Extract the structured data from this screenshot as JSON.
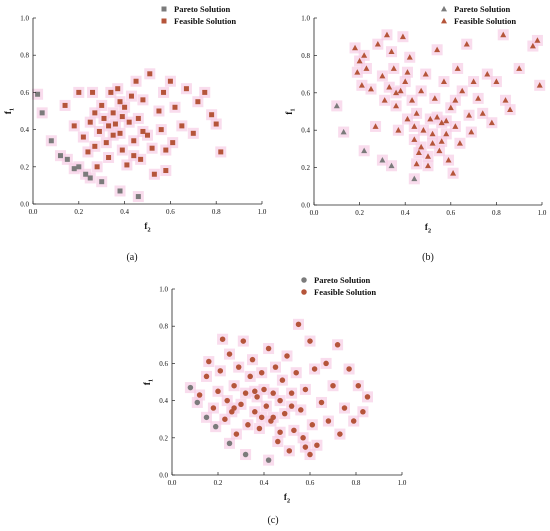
{
  "colors": {
    "pareto": "#7b7b7b",
    "feasible": "#b5553a",
    "halo": "#f7cde6",
    "axis": "#222222"
  },
  "chart_data": [
    {
      "type": "scatter",
      "panel_label": "(a)",
      "marker": "square",
      "xlabel": "f",
      "xlabel_sub": "2",
      "ylabel": "f",
      "ylabel_sub": "1",
      "xlim": [
        0,
        1.0
      ],
      "ylim": [
        0,
        1.0
      ],
      "xticks": [
        "0.0",
        "0.2",
        "0.4",
        "0.6",
        "0.8",
        "1.0"
      ],
      "yticks": [
        "0.0",
        "0.2",
        "0.4",
        "0.6",
        "0.8",
        "1.0"
      ],
      "grid": false,
      "legend_position": "top-right",
      "series": [
        {
          "name": "Pareto Solution",
          "points": [
            [
              0.02,
              0.59
            ],
            [
              0.04,
              0.49
            ],
            [
              0.08,
              0.34
            ],
            [
              0.12,
              0.26
            ],
            [
              0.15,
              0.24
            ],
            [
              0.18,
              0.19
            ],
            [
              0.2,
              0.2
            ],
            [
              0.23,
              0.16
            ],
            [
              0.25,
              0.14
            ],
            [
              0.3,
              0.12
            ],
            [
              0.38,
              0.07
            ],
            [
              0.46,
              0.04
            ]
          ]
        },
        {
          "name": "Feasible Solution",
          "points": [
            [
              0.14,
              0.53
            ],
            [
              0.18,
              0.42
            ],
            [
              0.2,
              0.6
            ],
            [
              0.22,
              0.36
            ],
            [
              0.24,
              0.28
            ],
            [
              0.25,
              0.44
            ],
            [
              0.26,
              0.6
            ],
            [
              0.27,
              0.49
            ],
            [
              0.28,
              0.2
            ],
            [
              0.29,
              0.39
            ],
            [
              0.3,
              0.53
            ],
            [
              0.31,
              0.46
            ],
            [
              0.32,
              0.33
            ],
            [
              0.33,
              0.25
            ],
            [
              0.34,
              0.6
            ],
            [
              0.35,
              0.49
            ],
            [
              0.36,
              0.43
            ],
            [
              0.37,
              0.62
            ],
            [
              0.38,
              0.38
            ],
            [
              0.39,
              0.29
            ],
            [
              0.4,
              0.52
            ],
            [
              0.41,
              0.21
            ],
            [
              0.42,
              0.44
            ],
            [
              0.43,
              0.58
            ],
            [
              0.44,
              0.34
            ],
            [
              0.45,
              0.66
            ],
            [
              0.46,
              0.46
            ],
            [
              0.47,
              0.24
            ],
            [
              0.48,
              0.56
            ],
            [
              0.5,
              0.37
            ],
            [
              0.51,
              0.7
            ],
            [
              0.52,
              0.3
            ],
            [
              0.53,
              0.16
            ],
            [
              0.55,
              0.5
            ],
            [
              0.56,
              0.4
            ],
            [
              0.57,
              0.6
            ],
            [
              0.58,
              0.18
            ],
            [
              0.6,
              0.66
            ],
            [
              0.61,
              0.33
            ],
            [
              0.62,
              0.52
            ],
            [
              0.65,
              0.42
            ],
            [
              0.67,
              0.62
            ],
            [
              0.7,
              0.38
            ],
            [
              0.72,
              0.55
            ],
            [
              0.75,
              0.6
            ],
            [
              0.78,
              0.48
            ],
            [
              0.8,
              0.43
            ],
            [
              0.82,
              0.28
            ],
            [
              0.35,
              0.37
            ],
            [
              0.38,
              0.55
            ],
            [
              0.33,
              0.42
            ],
            [
              0.27,
              0.31
            ],
            [
              0.39,
              0.47
            ],
            [
              0.44,
              0.26
            ],
            [
              0.48,
              0.39
            ],
            [
              0.58,
              0.29
            ]
          ]
        }
      ]
    },
    {
      "type": "scatter",
      "panel_label": "(b)",
      "marker": "triangle",
      "xlabel": "f",
      "xlabel_sub": "2",
      "ylabel": "f",
      "ylabel_sub": "1",
      "xlim": [
        0,
        1.0
      ],
      "ylim": [
        0,
        1.0
      ],
      "xticks": [
        "0.0",
        "0.2",
        "0.4",
        "0.6",
        "0.8",
        "1.0"
      ],
      "yticks": [
        "0.0",
        "0.2",
        "0.4",
        "0.6",
        "0.8",
        "1.0"
      ],
      "grid": false,
      "legend_position": "top-right",
      "series": [
        {
          "name": "Pareto Solution",
          "points": [
            [
              0.1,
              0.53
            ],
            [
              0.13,
              0.39
            ],
            [
              0.22,
              0.29
            ],
            [
              0.3,
              0.24
            ],
            [
              0.34,
              0.21
            ],
            [
              0.44,
              0.14
            ]
          ]
        },
        {
          "name": "Feasible Solution",
          "points": [
            [
              0.18,
              0.84
            ],
            [
              0.19,
              0.71
            ],
            [
              0.2,
              0.77
            ],
            [
              0.21,
              0.64
            ],
            [
              0.22,
              0.8
            ],
            [
              0.23,
              0.73
            ],
            [
              0.25,
              0.62
            ],
            [
              0.27,
              0.42
            ],
            [
              0.28,
              0.86
            ],
            [
              0.3,
              0.69
            ],
            [
              0.31,
              0.56
            ],
            [
              0.32,
              0.91
            ],
            [
              0.33,
              0.63
            ],
            [
              0.34,
              0.82
            ],
            [
              0.35,
              0.73
            ],
            [
              0.36,
              0.53
            ],
            [
              0.37,
              0.4
            ],
            [
              0.38,
              0.61
            ],
            [
              0.39,
              0.9
            ],
            [
              0.4,
              0.66
            ],
            [
              0.41,
              0.46
            ],
            [
              0.42,
              0.79
            ],
            [
              0.43,
              0.56
            ],
            [
              0.44,
              0.35
            ],
            [
              0.45,
              0.49
            ],
            [
              0.46,
              0.28
            ],
            [
              0.47,
              0.61
            ],
            [
              0.48,
              0.4
            ],
            [
              0.49,
              0.7
            ],
            [
              0.5,
              0.21
            ],
            [
              0.51,
              0.46
            ],
            [
              0.52,
              0.33
            ],
            [
              0.53,
              0.57
            ],
            [
              0.54,
              0.83
            ],
            [
              0.55,
              0.29
            ],
            [
              0.56,
              0.44
            ],
            [
              0.57,
              0.66
            ],
            [
              0.58,
              0.38
            ],
            [
              0.59,
              0.24
            ],
            [
              0.6,
              0.52
            ],
            [
              0.61,
              0.17
            ],
            [
              0.62,
              0.42
            ],
            [
              0.63,
              0.73
            ],
            [
              0.64,
              0.33
            ],
            [
              0.65,
              0.61
            ],
            [
              0.67,
              0.86
            ],
            [
              0.68,
              0.48
            ],
            [
              0.7,
              0.66
            ],
            [
              0.72,
              0.57
            ],
            [
              0.74,
              0.49
            ],
            [
              0.76,
              0.7
            ],
            [
              0.78,
              0.44
            ],
            [
              0.8,
              0.66
            ],
            [
              0.83,
              0.91
            ],
            [
              0.84,
              0.56
            ],
            [
              0.86,
              0.51
            ],
            [
              0.9,
              0.73
            ],
            [
              0.96,
              0.85
            ],
            [
              0.98,
              0.88
            ],
            [
              0.99,
              0.64
            ],
            [
              0.52,
              0.38
            ],
            [
              0.47,
              0.31
            ],
            [
              0.44,
              0.42
            ],
            [
              0.56,
              0.34
            ],
            [
              0.5,
              0.26
            ],
            [
              0.58,
              0.45
            ],
            [
              0.36,
              0.6
            ],
            [
              0.62,
              0.56
            ],
            [
              0.54,
              0.47
            ],
            [
              0.45,
              0.22
            ],
            [
              0.69,
              0.39
            ],
            [
              0.41,
              0.71
            ]
          ]
        }
      ]
    },
    {
      "type": "scatter",
      "panel_label": "(c)",
      "marker": "circle",
      "xlabel": "f",
      "xlabel_sub": "2",
      "ylabel": "f",
      "ylabel_sub": "1",
      "xlim": [
        0,
        1.0
      ],
      "ylim": [
        0,
        1.0
      ],
      "xticks": [
        "0.0",
        "0.2",
        "0.4",
        "0.6",
        "0.8",
        "1.0"
      ],
      "yticks": [
        "0.0",
        "0.2",
        "0.4",
        "0.6",
        "0.8",
        "1.0"
      ],
      "grid": false,
      "legend_position": "top-right",
      "series": [
        {
          "name": "Pareto Solution",
          "points": [
            [
              0.08,
              0.47
            ],
            [
              0.11,
              0.39
            ],
            [
              0.15,
              0.31
            ],
            [
              0.19,
              0.26
            ],
            [
              0.25,
              0.17
            ],
            [
              0.32,
              0.11
            ],
            [
              0.42,
              0.08
            ]
          ]
        },
        {
          "name": "Feasible Solution",
          "points": [
            [
              0.12,
              0.43
            ],
            [
              0.15,
              0.53
            ],
            [
              0.16,
              0.61
            ],
            [
              0.18,
              0.36
            ],
            [
              0.2,
              0.45
            ],
            [
              0.21,
              0.56
            ],
            [
              0.22,
              0.73
            ],
            [
              0.23,
              0.3
            ],
            [
              0.24,
              0.4
            ],
            [
              0.25,
              0.65
            ],
            [
              0.26,
              0.34
            ],
            [
              0.27,
              0.48
            ],
            [
              0.28,
              0.22
            ],
            [
              0.29,
              0.58
            ],
            [
              0.3,
              0.38
            ],
            [
              0.31,
              0.72
            ],
            [
              0.32,
              0.44
            ],
            [
              0.33,
              0.27
            ],
            [
              0.34,
              0.53
            ],
            [
              0.35,
              0.62
            ],
            [
              0.36,
              0.34
            ],
            [
              0.37,
              0.42
            ],
            [
              0.38,
              0.25
            ],
            [
              0.39,
              0.55
            ],
            [
              0.4,
              0.46
            ],
            [
              0.41,
              0.37
            ],
            [
              0.42,
              0.68
            ],
            [
              0.43,
              0.29
            ],
            [
              0.44,
              0.44
            ],
            [
              0.45,
              0.58
            ],
            [
              0.46,
              0.18
            ],
            [
              0.47,
              0.4
            ],
            [
              0.48,
              0.51
            ],
            [
              0.49,
              0.33
            ],
            [
              0.5,
              0.64
            ],
            [
              0.51,
              0.13
            ],
            [
              0.52,
              0.44
            ],
            [
              0.53,
              0.24
            ],
            [
              0.54,
              0.55
            ],
            [
              0.55,
              0.81
            ],
            [
              0.56,
              0.35
            ],
            [
              0.57,
              0.2
            ],
            [
              0.58,
              0.46
            ],
            [
              0.6,
              0.72
            ],
            [
              0.61,
              0.27
            ],
            [
              0.62,
              0.57
            ],
            [
              0.63,
              0.16
            ],
            [
              0.65,
              0.39
            ],
            [
              0.67,
              0.6
            ],
            [
              0.68,
              0.29
            ],
            [
              0.7,
              0.48
            ],
            [
              0.72,
              0.7
            ],
            [
              0.73,
              0.22
            ],
            [
              0.75,
              0.36
            ],
            [
              0.77,
              0.57
            ],
            [
              0.79,
              0.29
            ],
            [
              0.81,
              0.48
            ],
            [
              0.83,
              0.34
            ],
            [
              0.85,
              0.42
            ],
            [
              0.6,
              0.11
            ],
            [
              0.44,
              0.31
            ],
            [
              0.36,
              0.45
            ],
            [
              0.52,
              0.37
            ],
            [
              0.27,
              0.36
            ],
            [
              0.39,
              0.31
            ],
            [
              0.58,
              0.15
            ],
            [
              0.47,
              0.23
            ]
          ]
        }
      ]
    }
  ]
}
